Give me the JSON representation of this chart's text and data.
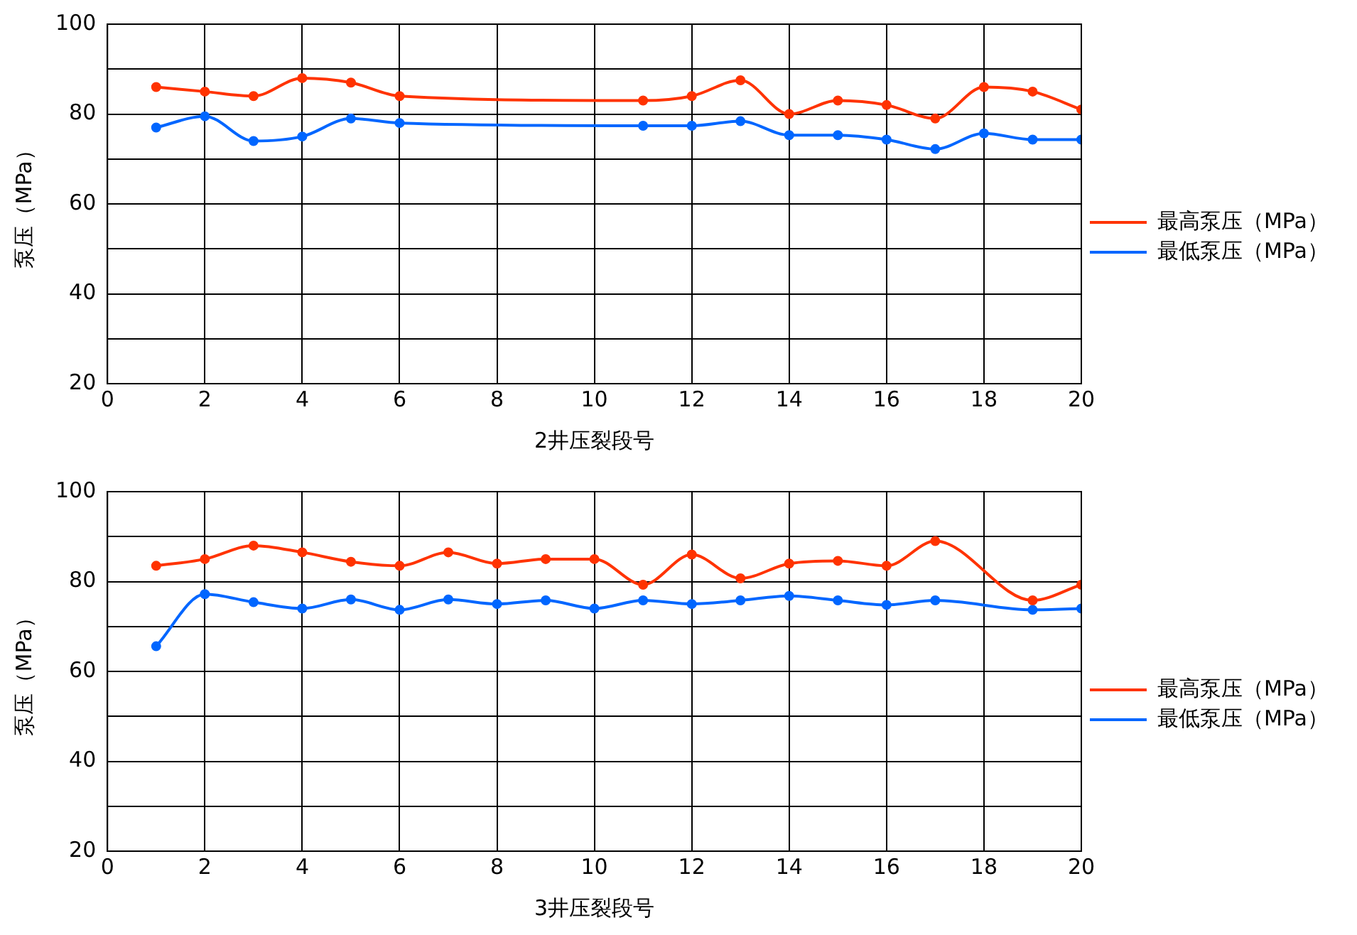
{
  "chart_data": [
    {
      "type": "line",
      "xlabel": "2井压裂段号",
      "ylabel": "泵压（MPa）",
      "xlim": [
        0,
        20
      ],
      "xticks": [
        0,
        2,
        4,
        6,
        8,
        10,
        12,
        14,
        16,
        18,
        20
      ],
      "ylim": [
        20,
        100
      ],
      "yticks": [
        20,
        {
          "value": 30,
          "label": null
        },
        40,
        {
          "value": 50,
          "label": null
        },
        60,
        {
          "value": 70,
          "label": null
        },
        80,
        {
          "value": 90,
          "label": null
        },
        100
      ],
      "grid": true,
      "legend": "right",
      "marker": "circle",
      "line_style": "solid",
      "x": [
        1,
        2,
        3,
        4,
        5,
        6,
        11,
        12,
        13,
        14,
        15,
        16,
        17,
        18,
        19,
        20
      ],
      "series": [
        {
          "name": "最高泵压（MPa）",
          "color": "#ff3300",
          "values": [
            86,
            85,
            84,
            88,
            87,
            84,
            83,
            84,
            87.5,
            80,
            83,
            82,
            79,
            86,
            85,
            81
          ]
        },
        {
          "name": "最低泵压（MPa）",
          "color": "#0066ff",
          "values": [
            77,
            79.5,
            74,
            75,
            79,
            78,
            77.4,
            77.4,
            78.4,
            75.3,
            75.3,
            74.3,
            72.2,
            75.7,
            74.3,
            74.3
          ]
        }
      ]
    },
    {
      "type": "line",
      "xlabel": "3井压裂段号",
      "ylabel": "泵压（MPa）",
      "xlim": [
        0,
        20
      ],
      "xticks": [
        0,
        2,
        4,
        6,
        8,
        10,
        12,
        14,
        16,
        18,
        20
      ],
      "ylim": [
        20,
        100
      ],
      "yticks": [
        20,
        {
          "value": 30,
          "label": null
        },
        40,
        {
          "value": 50,
          "label": null
        },
        60,
        {
          "value": 70,
          "label": null
        },
        80,
        {
          "value": 90,
          "label": null
        },
        100
      ],
      "grid": true,
      "legend": "right",
      "marker": "circle",
      "line_style": "solid",
      "x": [
        1,
        2,
        3,
        4,
        5,
        6,
        7,
        8,
        9,
        10,
        11,
        12,
        13,
        14,
        15,
        16,
        17,
        19,
        20
      ],
      "series": [
        {
          "name": "最高泵压（MPa）",
          "color": "#ff3300",
          "values": [
            83.5,
            85,
            88,
            86.5,
            84.4,
            83.5,
            86.5,
            84,
            85,
            85,
            79.3,
            86,
            80.7,
            84,
            84.6,
            83.5,
            89,
            75.8,
            79.3
          ]
        },
        {
          "name": "最低泵压（MPa）",
          "color": "#0066ff",
          "values": [
            65.6,
            77.2,
            75.4,
            74,
            76,
            73.7,
            76,
            75,
            75.8,
            74,
            75.8,
            75,
            75.8,
            76.8,
            75.8,
            74.8,
            75.8,
            73.7,
            74
          ]
        }
      ]
    }
  ]
}
